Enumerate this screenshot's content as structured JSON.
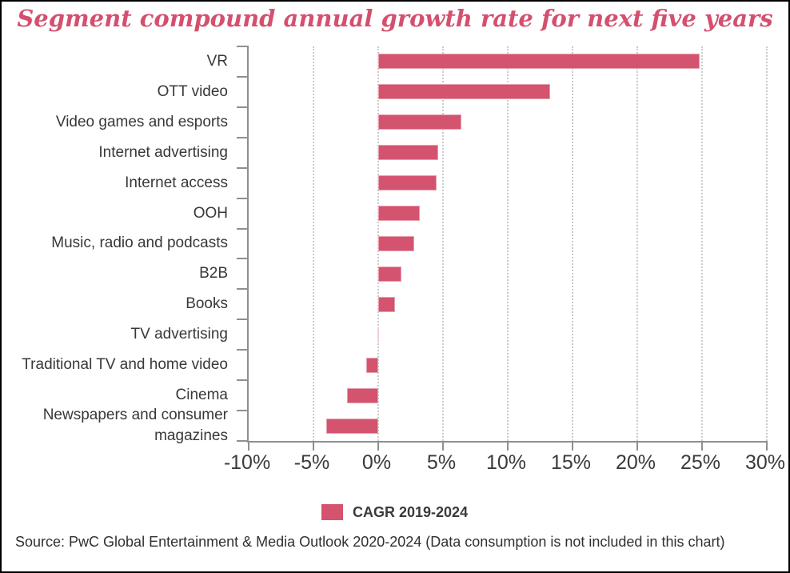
{
  "title": {
    "text": "Segment compound annual growth rate for next five years"
  },
  "legend": {
    "label": "CAGR 2019-2024"
  },
  "source": {
    "text": "Source: PwC Global Entertainment & Media Outlook 2020-2024 (Data consumption is not included in this chart)"
  },
  "colors": {
    "accent": "#d4536e",
    "title": "#d4506e",
    "zero_bar": "#f2cdd8",
    "axis": "#8f8f8f",
    "grid": "#cbcbcb",
    "text": "#383838"
  },
  "chart_data": {
    "type": "bar",
    "orientation": "horizontal",
    "title": "Segment compound annual growth rate for next five years",
    "categories": [
      "VR",
      "OTT video",
      "Video games and esports",
      "Internet advertising",
      "Internet access",
      "OOH",
      "Music, radio and podcasts",
      "B2B",
      "Books",
      "TV advertising",
      "Traditional TV and home video",
      "Cinema",
      "Newspapers and consumer magazines"
    ],
    "series": [
      {
        "name": "CAGR 2019-2024",
        "values": [
          24.8,
          13.3,
          6.4,
          4.6,
          4.5,
          3.2,
          2.8,
          1.8,
          1.3,
          0.0,
          -0.9,
          -2.4,
          -4.0
        ]
      }
    ],
    "unit": "%",
    "xlim": [
      -10,
      30
    ],
    "x_ticks": [
      "-10%",
      "-5%",
      "0%",
      "5%",
      "10%",
      "15%",
      "20%",
      "25%",
      "30%"
    ],
    "grid": "vertical-dotted-every-5pct",
    "legend_position": "bottom-center"
  }
}
